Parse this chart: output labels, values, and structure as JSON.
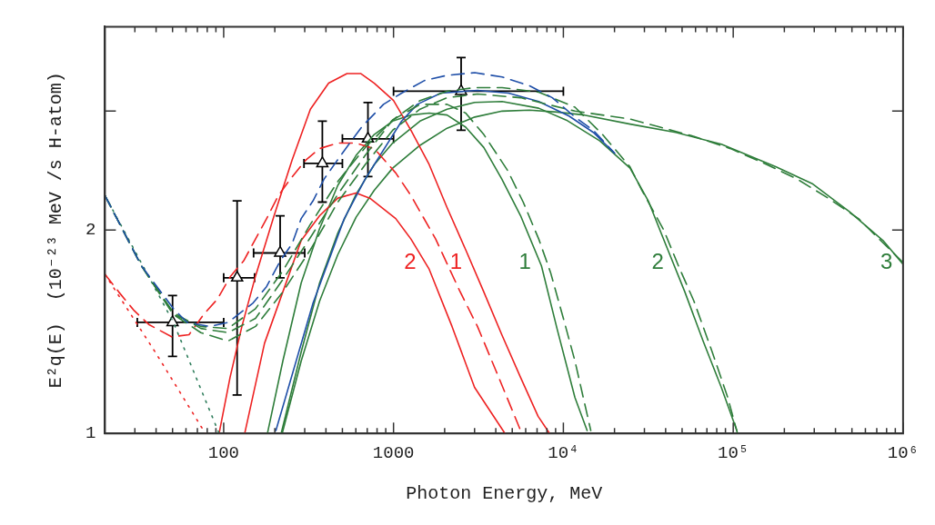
{
  "chart_data": {
    "type": "line",
    "xlabel": "Photon Energy, MeV",
    "ylabel": "E²q(E)  (10⁻²³ MeV /s H-atom)",
    "log": "xy",
    "grid": false,
    "legend": false,
    "xlim": [
      20,
      1000000
    ],
    "ylim": [
      1,
      4
    ],
    "xticks": [
      {
        "value": 30,
        "label": null
      },
      {
        "value": 40,
        "label": null
      },
      {
        "value": 50,
        "label": null
      },
      {
        "value": 60,
        "label": null
      },
      {
        "value": 70,
        "label": null
      },
      {
        "value": 80,
        "label": null
      },
      {
        "value": 90,
        "label": null
      },
      100,
      {
        "value": 200,
        "label": null
      },
      {
        "value": 300,
        "label": null
      },
      {
        "value": 400,
        "label": null
      },
      {
        "value": 500,
        "label": null
      },
      {
        "value": 600,
        "label": null
      },
      {
        "value": 700,
        "label": null
      },
      {
        "value": 800,
        "label": null
      },
      {
        "value": 900,
        "label": null
      },
      1000,
      {
        "value": 2000,
        "label": null
      },
      {
        "value": 3000,
        "label": null
      },
      {
        "value": 4000,
        "label": null
      },
      {
        "value": 5000,
        "label": null
      },
      {
        "value": 6000,
        "label": null
      },
      {
        "value": 7000,
        "label": null
      },
      {
        "value": 8000,
        "label": null
      },
      {
        "value": 9000,
        "label": null
      },
      {
        "value": 10000,
        "label": "10⁴"
      },
      {
        "value": 20000,
        "label": null
      },
      {
        "value": 30000,
        "label": null
      },
      {
        "value": 40000,
        "label": null
      },
      {
        "value": 50000,
        "label": null
      },
      {
        "value": 60000,
        "label": null
      },
      {
        "value": 70000,
        "label": null
      },
      {
        "value": 80000,
        "label": null
      },
      {
        "value": 90000,
        "label": null
      },
      {
        "value": 100000,
        "label": "10⁵"
      },
      {
        "value": 200000,
        "label": null
      },
      {
        "value": 300000,
        "label": null
      },
      {
        "value": 400000,
        "label": null
      },
      {
        "value": 500000,
        "label": null
      },
      {
        "value": 600000,
        "label": null
      },
      {
        "value": 700000,
        "label": null
      },
      {
        "value": 800000,
        "label": null
      },
      {
        "value": 900000,
        "label": null
      },
      {
        "value": 1000000,
        "label": "10⁶"
      }
    ],
    "yticks": [
      1,
      2,
      {
        "value": 3,
        "label": null
      }
    ],
    "series": [
      {
        "color": "#1f4fa8",
        "line_style": "dashed",
        "x": [
          20,
          32.8,
          50.6,
          61,
          83,
          106,
          149,
          179,
          215,
          253,
          286,
          336,
          390,
          458,
          552,
          656,
          873,
          1117,
          1523,
          2075,
          3010,
          4360,
          6320,
          8610,
          11700,
          15000,
          20000
        ],
        "values": [
          2.25,
          1.77,
          1.53,
          1.46,
          1.44,
          1.46,
          1.56,
          1.65,
          1.8,
          1.91,
          2.08,
          2.21,
          2.38,
          2.52,
          2.69,
          2.85,
          3.07,
          3.19,
          3.33,
          3.39,
          3.42,
          3.37,
          3.27,
          3.14,
          2.94,
          2.81,
          2.6
        ]
      },
      {
        "color": "#2e7d3a",
        "line_style": "dashed",
        "x": [
          20,
          32.8,
          50.6,
          73.4,
          106,
          154,
          223,
          324,
          470,
          681,
          988,
          1432,
          2066,
          2660,
          3400,
          4700,
          5800,
          7160,
          8410,
          10000,
          11700,
          14500
        ],
        "values": [
          2.25,
          1.77,
          1.5,
          1.44,
          1.43,
          1.53,
          1.74,
          2.04,
          2.36,
          2.65,
          2.91,
          3.07,
          3.07,
          2.98,
          2.77,
          2.45,
          2.2,
          1.94,
          1.73,
          1.48,
          1.28,
          1.01
        ]
      },
      {
        "color": "#2e7d3a",
        "line_style": "dashed",
        "x": [
          20,
          32.8,
          50.6,
          73.4,
          106,
          154,
          223,
          324,
          470,
          681,
          988,
          1432,
          2066,
          3010,
          4360,
          7160,
          11700,
          17000,
          24700,
          29000,
          39000,
          47600,
          58700,
          75200,
          92900,
          106000
        ],
        "values": [
          2.25,
          1.77,
          1.51,
          1.43,
          1.41,
          1.48,
          1.69,
          1.95,
          2.26,
          2.58,
          2.91,
          3.11,
          3.21,
          3.25,
          3.25,
          3.2,
          3.04,
          2.77,
          2.48,
          2.29,
          2.0,
          1.77,
          1.57,
          1.32,
          1.13,
          1.0
        ]
      },
      {
        "color": "#2e7d3a",
        "line_style": "dashed",
        "x": [
          20,
          32.8,
          50.6,
          73.4,
          106,
          154,
          223,
          324,
          470,
          681,
          988,
          1432,
          2066,
          3120,
          5600,
          11700,
          24700,
          37200,
          56600,
          96400,
          158000,
          238000,
          362000,
          546000,
          1000000
        ],
        "values": [
          2.25,
          1.77,
          1.5,
          1.41,
          1.37,
          1.44,
          1.62,
          1.87,
          2.2,
          2.5,
          2.81,
          3.02,
          3.14,
          3.18,
          3.14,
          3.0,
          2.92,
          2.84,
          2.76,
          2.64,
          2.5,
          2.38,
          2.23,
          2.08,
          1.79
        ]
      },
      {
        "color": "#ee2222",
        "line_style": "dashed",
        "x": [
          20,
          24.1,
          29.7,
          36.2,
          49.4,
          62.5,
          76.2,
          91.7,
          110,
          131,
          154,
          179,
          210,
          247,
          305,
          367,
          470,
          602,
          770,
          1030,
          1266,
          1770,
          2440,
          3120,
          4000,
          5600
        ],
        "values": [
          1.72,
          1.62,
          1.52,
          1.45,
          1.39,
          1.4,
          1.5,
          1.58,
          1.71,
          1.8,
          1.94,
          2.08,
          2.25,
          2.38,
          2.54,
          2.64,
          2.69,
          2.69,
          2.64,
          2.43,
          2.25,
          1.94,
          1.63,
          1.44,
          1.24,
          1.01
        ]
      },
      {
        "color": "#ee2222",
        "line_style": "dotted",
        "x": [
          20,
          39.5,
          78
        ],
        "values": [
          1.72,
          1.32,
          1.0
        ]
      },
      {
        "color": "#2e7d5b",
        "line_style": "dotted",
        "x": [
          20,
          50.6,
          94
        ],
        "values": [
          2.25,
          1.46,
          1.0
        ]
      },
      {
        "color": "#1f4fa8",
        "line_style": "solid",
        "x": [
          203,
          336,
          513,
          681,
          1117,
          1380,
          1900,
          3120,
          4750,
          7160,
          10800,
          15000,
          20000
        ],
        "values": [
          1.01,
          1.56,
          2.08,
          2.38,
          2.9,
          3.07,
          3.19,
          3.22,
          3.19,
          3.1,
          2.95,
          2.79,
          2.6
        ]
      },
      {
        "name": "1",
        "color": "#ee2222",
        "line_style": "solid",
        "x": [
          94,
          109,
          128,
          154,
          198,
          253,
          324,
          415,
          532,
          640,
          770,
          1000,
          1266,
          1622,
          2066,
          2660,
          3400,
          4340,
          5600,
          7100,
          8300
        ],
        "values": [
          1.0,
          1.21,
          1.44,
          1.71,
          2.1,
          2.54,
          3.02,
          3.3,
          3.41,
          3.41,
          3.3,
          3.11,
          2.81,
          2.5,
          2.16,
          1.87,
          1.62,
          1.4,
          1.21,
          1.06,
          1.0
        ]
      },
      {
        "name": "2",
        "color": "#ee2222",
        "line_style": "solid",
        "x": [
          133,
          174,
          223,
          286,
          367,
          470,
          602,
          725,
          1030,
          1266,
          1622,
          2210,
          3000,
          4530
        ],
        "values": [
          1.0,
          1.36,
          1.62,
          1.93,
          2.1,
          2.23,
          2.27,
          2.23,
          2.08,
          1.94,
          1.75,
          1.44,
          1.17,
          1.0
        ]
      },
      {
        "name": "1",
        "color": "#2e7d3a",
        "line_style": "solid",
        "x": [
          181,
          223,
          286,
          367,
          470,
          602,
          770,
          988,
          1266,
          1622,
          2066,
          2660,
          3400,
          4340,
          5600,
          7430,
          9170,
          11700,
          13800
        ],
        "values": [
          1.0,
          1.28,
          1.67,
          2.01,
          2.33,
          2.58,
          2.77,
          2.9,
          2.96,
          2.98,
          2.96,
          2.84,
          2.65,
          2.38,
          2.1,
          1.77,
          1.43,
          1.13,
          1.01
        ]
      },
      {
        "name": "2",
        "color": "#2e7d3a",
        "line_style": "solid",
        "x": [
          218,
          286,
          367,
          470,
          602,
          770,
          988,
          1432,
          2066,
          3010,
          4360,
          7160,
          10400,
          16400,
          24700,
          31600,
          40500,
          51900,
          66500,
          85100,
          105000
        ],
        "values": [
          1.0,
          1.32,
          1.67,
          1.98,
          2.26,
          2.5,
          2.69,
          2.9,
          3.02,
          3.09,
          3.1,
          3.03,
          2.91,
          2.71,
          2.47,
          2.21,
          1.89,
          1.62,
          1.37,
          1.17,
          1.01
        ]
      },
      {
        "name": "3",
        "color": "#2e7d3a",
        "line_style": "solid",
        "x": [
          221,
          286,
          367,
          470,
          602,
          770,
          988,
          1432,
          2066,
          3010,
          4360,
          6320,
          9170,
          13300,
          24700,
          45800,
          85100,
          179000,
          294000,
          482000,
          762000,
          1000000
        ],
        "values": [
          1.0,
          1.28,
          1.57,
          1.84,
          2.09,
          2.29,
          2.47,
          2.67,
          2.83,
          2.94,
          3.0,
          3.01,
          2.99,
          2.96,
          2.87,
          2.79,
          2.68,
          2.48,
          2.34,
          2.13,
          1.93,
          1.78
        ]
      },
      {
        "type": "scatter",
        "color": "#000000",
        "marker": "triangle",
        "x": [
          50,
          120,
          215,
          381,
          707,
          2500
        ],
        "values": [
          1.46,
          1.7,
          1.85,
          2.51,
          2.73,
          3.21
        ],
        "xerrors": [
          [
            31,
            100
          ],
          [
            100,
            152
          ],
          [
            150,
            300
          ],
          [
            297,
            500
          ],
          [
            500,
            1000
          ],
          [
            1000,
            10000
          ]
        ],
        "errors": [
          [
            1.3,
            1.6
          ],
          [
            1.14,
            2.21
          ],
          [
            1.7,
            2.1
          ],
          [
            2.2,
            2.9
          ],
          [
            2.4,
            3.09
          ],
          [
            2.81,
            3.6
          ]
        ]
      }
    ]
  }
}
